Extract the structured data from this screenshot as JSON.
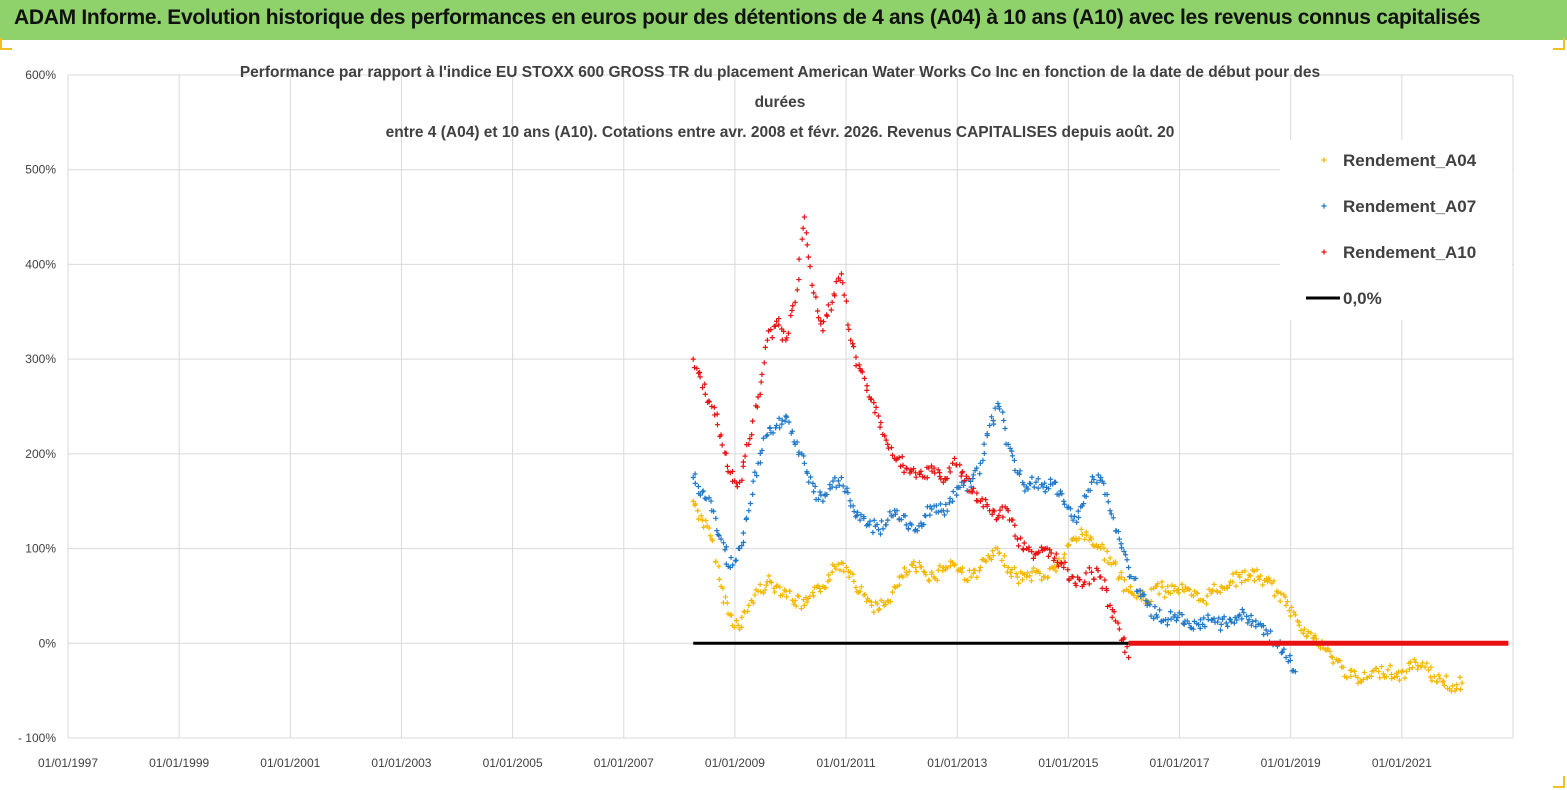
{
  "header": {
    "title": "ADAM Informe. Evolution historique des performances en euros pour des détentions de 4 ans (A04) à 10 ans (A10) avec les revenus connus capitalisés"
  },
  "chart_data": {
    "type": "scatter",
    "title_lines": [
      "Performance par rapport à l'indice EU STOXX 600 GROSS TR  du placement American Water Works Co Inc en fonction de la date de début pour des",
      "durées",
      "entre 4 (A04) et 10 ans (A10).  Cotations entre avr. 2008 et févr. 2026. Revenus CAPITALISES depuis août. 20"
    ],
    "xlabel": "",
    "ylabel": "",
    "x_tick_labels": [
      "01/01/1997",
      "01/01/1999",
      "01/01/2001",
      "01/01/2003",
      "01/01/2005",
      "01/01/2007",
      "01/01/2009",
      "01/01/2011",
      "01/01/2013",
      "01/01/2015",
      "01/01/2017",
      "01/01/2019",
      "01/01/2021"
    ],
    "x_range": [
      "01/01/1997",
      "01/01/2023"
    ],
    "y_tick_labels": [
      "600%",
      "500%",
      "400%",
      "300%",
      "200%",
      "100%",
      "0%",
      "- 100%"
    ],
    "ylim": [
      -100,
      600
    ],
    "y_unit": "%",
    "grid": true,
    "legend_position": "top-right",
    "series": [
      {
        "name": "Rendement_A04",
        "color": "#f5b800",
        "marker": "+",
        "points": [
          [
            "2008-04",
            150
          ],
          [
            "2008-06",
            130
          ],
          [
            "2008-08",
            110
          ],
          [
            "2008-10",
            60
          ],
          [
            "2008-12",
            30
          ],
          [
            "2009-02",
            15
          ],
          [
            "2009-04",
            40
          ],
          [
            "2009-06",
            55
          ],
          [
            "2009-08",
            65
          ],
          [
            "2009-10",
            60
          ],
          [
            "2009-12",
            55
          ],
          [
            "2010-02",
            45
          ],
          [
            "2010-04",
            40
          ],
          [
            "2010-06",
            50
          ],
          [
            "2010-08",
            60
          ],
          [
            "2010-10",
            75
          ],
          [
            "2010-12",
            85
          ],
          [
            "2011-02",
            75
          ],
          [
            "2011-04",
            55
          ],
          [
            "2011-06",
            45
          ],
          [
            "2011-08",
            35
          ],
          [
            "2011-10",
            45
          ],
          [
            "2011-12",
            60
          ],
          [
            "2012-02",
            75
          ],
          [
            "2012-04",
            80
          ],
          [
            "2012-06",
            75
          ],
          [
            "2012-08",
            70
          ],
          [
            "2012-10",
            80
          ],
          [
            "2012-12",
            85
          ],
          [
            "2013-02",
            75
          ],
          [
            "2013-04",
            70
          ],
          [
            "2013-06",
            80
          ],
          [
            "2013-08",
            90
          ],
          [
            "2013-10",
            95
          ],
          [
            "2013-12",
            80
          ],
          [
            "2014-02",
            70
          ],
          [
            "2014-04",
            70
          ],
          [
            "2014-06",
            75
          ],
          [
            "2014-08",
            70
          ],
          [
            "2014-10",
            80
          ],
          [
            "2014-12",
            90
          ],
          [
            "2015-02",
            110
          ],
          [
            "2015-04",
            115
          ],
          [
            "2015-06",
            110
          ],
          [
            "2015-08",
            100
          ],
          [
            "2015-10",
            90
          ],
          [
            "2015-12",
            70
          ],
          [
            "2016-02",
            55
          ],
          [
            "2016-04",
            50
          ],
          [
            "2016-06",
            45
          ],
          [
            "2016-08",
            60
          ],
          [
            "2016-10",
            55
          ],
          [
            "2016-12",
            60
          ],
          [
            "2017-02",
            55
          ],
          [
            "2017-04",
            50
          ],
          [
            "2017-06",
            45
          ],
          [
            "2017-08",
            55
          ],
          [
            "2017-10",
            60
          ],
          [
            "2017-12",
            65
          ],
          [
            "2018-02",
            70
          ],
          [
            "2018-04",
            72
          ],
          [
            "2018-06",
            70
          ],
          [
            "2018-08",
            65
          ],
          [
            "2018-10",
            55
          ],
          [
            "2018-12",
            40
          ],
          [
            "2019-02",
            30
          ],
          [
            "2019-04",
            15
          ],
          [
            "2019-06",
            5
          ],
          [
            "2019-08",
            -5
          ],
          [
            "2019-10",
            -15
          ],
          [
            "2019-12",
            -25
          ],
          [
            "2020-02",
            -35
          ],
          [
            "2020-04",
            -40
          ],
          [
            "2020-06",
            -35
          ],
          [
            "2020-08",
            -30
          ],
          [
            "2020-10",
            -28
          ],
          [
            "2020-12",
            -35
          ],
          [
            "2021-02",
            -30
          ],
          [
            "2021-04",
            -20
          ],
          [
            "2021-06",
            -25
          ],
          [
            "2021-08",
            -35
          ],
          [
            "2021-10",
            -40
          ],
          [
            "2021-12",
            -45
          ],
          [
            "2022-02",
            -42
          ]
        ]
      },
      {
        "name": "Rendement_A07",
        "color": "#1f78c8",
        "marker": "+",
        "points": [
          [
            "2008-04",
            175
          ],
          [
            "2008-06",
            160
          ],
          [
            "2008-08",
            140
          ],
          [
            "2008-10",
            110
          ],
          [
            "2008-12",
            80
          ],
          [
            "2009-02",
            100
          ],
          [
            "2009-04",
            140
          ],
          [
            "2009-06",
            190
          ],
          [
            "2009-08",
            220
          ],
          [
            "2009-10",
            230
          ],
          [
            "2009-12",
            240
          ],
          [
            "2010-02",
            210
          ],
          [
            "2010-04",
            190
          ],
          [
            "2010-06",
            160
          ],
          [
            "2010-08",
            150
          ],
          [
            "2010-10",
            165
          ],
          [
            "2010-12",
            175
          ],
          [
            "2011-02",
            145
          ],
          [
            "2011-04",
            130
          ],
          [
            "2011-06",
            125
          ],
          [
            "2011-08",
            120
          ],
          [
            "2011-10",
            130
          ],
          [
            "2011-12",
            140
          ],
          [
            "2012-02",
            125
          ],
          [
            "2012-04",
            120
          ],
          [
            "2012-06",
            135
          ],
          [
            "2012-08",
            145
          ],
          [
            "2012-10",
            140
          ],
          [
            "2012-12",
            150
          ],
          [
            "2013-02",
            170
          ],
          [
            "2013-04",
            165
          ],
          [
            "2013-06",
            190
          ],
          [
            "2013-08",
            230
          ],
          [
            "2013-10",
            250
          ],
          [
            "2013-12",
            210
          ],
          [
            "2014-02",
            180
          ],
          [
            "2014-04",
            165
          ],
          [
            "2014-06",
            170
          ],
          [
            "2014-08",
            160
          ],
          [
            "2014-10",
            170
          ],
          [
            "2014-12",
            150
          ],
          [
            "2015-02",
            130
          ],
          [
            "2015-04",
            145
          ],
          [
            "2015-06",
            170
          ],
          [
            "2015-08",
            175
          ],
          [
            "2015-10",
            140
          ],
          [
            "2015-12",
            110
          ],
          [
            "2016-02",
            80
          ],
          [
            "2016-04",
            55
          ],
          [
            "2016-06",
            40
          ],
          [
            "2016-08",
            30
          ],
          [
            "2016-10",
            25
          ],
          [
            "2016-12",
            30
          ],
          [
            "2017-02",
            20
          ],
          [
            "2017-04",
            15
          ],
          [
            "2017-06",
            20
          ],
          [
            "2017-08",
            25
          ],
          [
            "2017-10",
            20
          ],
          [
            "2017-12",
            25
          ],
          [
            "2018-02",
            30
          ],
          [
            "2018-04",
            25
          ],
          [
            "2018-06",
            20
          ],
          [
            "2018-08",
            10
          ],
          [
            "2018-10",
            0
          ],
          [
            "2018-12",
            -15
          ],
          [
            "2019-02",
            -30
          ]
        ]
      },
      {
        "name": "Rendement_A10",
        "color": "#e81010",
        "marker": "+",
        "points": [
          [
            "2008-04",
            300
          ],
          [
            "2008-06",
            270
          ],
          [
            "2008-08",
            250
          ],
          [
            "2008-10",
            220
          ],
          [
            "2008-12",
            180
          ],
          [
            "2009-02",
            170
          ],
          [
            "2009-04",
            210
          ],
          [
            "2009-06",
            260
          ],
          [
            "2009-08",
            320
          ],
          [
            "2009-10",
            340
          ],
          [
            "2009-12",
            320
          ],
          [
            "2010-02",
            360
          ],
          [
            "2010-04",
            450
          ],
          [
            "2010-06",
            370
          ],
          [
            "2010-08",
            330
          ],
          [
            "2010-10",
            360
          ],
          [
            "2010-12",
            390
          ],
          [
            "2011-02",
            320
          ],
          [
            "2011-04",
            290
          ],
          [
            "2011-06",
            260
          ],
          [
            "2011-08",
            240
          ],
          [
            "2011-10",
            210
          ],
          [
            "2011-12",
            195
          ],
          [
            "2012-02",
            185
          ],
          [
            "2012-04",
            180
          ],
          [
            "2012-06",
            175
          ],
          [
            "2012-08",
            185
          ],
          [
            "2012-10",
            170
          ],
          [
            "2012-12",
            190
          ],
          [
            "2013-02",
            180
          ],
          [
            "2013-04",
            160
          ],
          [
            "2013-06",
            150
          ],
          [
            "2013-08",
            140
          ],
          [
            "2013-10",
            135
          ],
          [
            "2013-12",
            140
          ],
          [
            "2014-02",
            110
          ],
          [
            "2014-04",
            100
          ],
          [
            "2014-06",
            95
          ],
          [
            "2014-08",
            100
          ],
          [
            "2014-10",
            90
          ],
          [
            "2014-12",
            80
          ],
          [
            "2015-02",
            70
          ],
          [
            "2015-04",
            60
          ],
          [
            "2015-06",
            75
          ],
          [
            "2015-08",
            70
          ],
          [
            "2015-10",
            40
          ],
          [
            "2015-12",
            15
          ],
          [
            "2016-02",
            -15
          ]
        ]
      },
      {
        "name": "0,0%",
        "color": "#000000",
        "marker": "line",
        "points": [
          [
            "2008-04",
            0
          ],
          [
            "2016-02",
            0
          ]
        ]
      },
      {
        "name": "zero-segment-red",
        "color": "#e81010",
        "marker": "line",
        "points": [
          [
            "2016-02",
            0
          ],
          [
            "2022-12",
            0
          ]
        ]
      }
    ]
  }
}
